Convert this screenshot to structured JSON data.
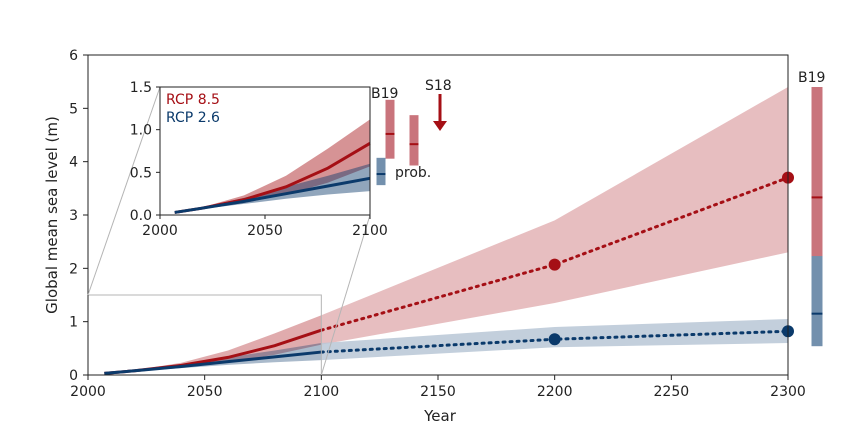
{
  "chart_data": {
    "type": "line",
    "title": "",
    "xlabel": "Year",
    "ylabel": "Global mean sea level (m)",
    "xlim": [
      2000,
      2300
    ],
    "ylim": [
      0,
      6
    ],
    "xticks": [
      2000,
      2050,
      2100,
      2150,
      2200,
      2250,
      2300
    ],
    "yticks": [
      0,
      1,
      2,
      3,
      4,
      5,
      6
    ],
    "grid": false,
    "series": [
      {
        "name": "RCP 8.5",
        "color": "#a50f15",
        "band_color": "#e3b3b5",
        "x": [
          2007,
          2020,
          2040,
          2060,
          2080,
          2100
        ],
        "y": [
          0.03,
          0.08,
          0.18,
          0.33,
          0.55,
          0.84
        ],
        "band_low": [
          0.03,
          0.07,
          0.14,
          0.24,
          0.38,
          0.57
        ],
        "band_high": [
          0.03,
          0.09,
          0.23,
          0.46,
          0.78,
          1.12
        ],
        "projection": {
          "x": [
            2100,
            2200,
            2300
          ],
          "y": [
            0.84,
            2.07,
            3.7
          ]
        },
        "projection_band": {
          "x": [
            2100,
            2200,
            2300
          ],
          "low": [
            0.57,
            1.35,
            2.3
          ],
          "high": [
            1.12,
            2.9,
            5.4
          ]
        },
        "markers": [
          {
            "x": 2200,
            "y": 2.07
          },
          {
            "x": 2300,
            "y": 3.7
          }
        ]
      },
      {
        "name": "RCP 2.6",
        "color": "#0b3a6b",
        "band_color": "#b8c7d6",
        "x": [
          2007,
          2020,
          2040,
          2060,
          2080,
          2100
        ],
        "y": [
          0.03,
          0.08,
          0.16,
          0.25,
          0.34,
          0.43
        ],
        "band_low": [
          0.03,
          0.07,
          0.13,
          0.19,
          0.24,
          0.28
        ],
        "band_high": [
          0.03,
          0.09,
          0.2,
          0.33,
          0.46,
          0.6
        ],
        "projection": {
          "x": [
            2100,
            2200,
            2300
          ],
          "y": [
            0.43,
            0.67,
            0.82
          ]
        },
        "projection_band": {
          "x": [
            2100,
            2200,
            2300
          ],
          "low": [
            0.28,
            0.52,
            0.6
          ],
          "high": [
            0.6,
            0.9,
            1.05
          ]
        },
        "markers": [
          {
            "x": 2200,
            "y": 0.67
          },
          {
            "x": 2300,
            "y": 0.82
          }
        ]
      }
    ],
    "side_bars": [
      {
        "label": "B19",
        "series": "RCP 8.5",
        "low": 1.99,
        "high": 5.4,
        "median": 3.33,
        "color": "#c9747c",
        "median_color": "#a50f15"
      },
      {
        "label": "",
        "series": "RCP 2.6",
        "low": 0.54,
        "high": 2.23,
        "median": 1.15,
        "color": "#7390ad",
        "median_color": "#0b3a6b"
      }
    ],
    "inset": {
      "xlim": [
        2000,
        2100
      ],
      "ylim": [
        0,
        1.5
      ],
      "xticks": [
        2000,
        2050,
        2100
      ],
      "yticks": [
        0.0,
        0.5,
        1.0,
        1.5
      ],
      "ytick_labels": [
        "0.0",
        "0.5",
        "1.0",
        "1.5"
      ],
      "legend": [
        {
          "label": "RCP 8.5",
          "color": "#a50f15"
        },
        {
          "label": "RCP 2.6",
          "color": "#0b3a6b"
        }
      ],
      "annotations": {
        "b19_label": "B19",
        "s18_label": "S18",
        "prob_label": "prob."
      },
      "side_bars": [
        {
          "label": "B19 RCP 8.5",
          "low": 0.66,
          "high": 1.35,
          "median": 0.95,
          "color": "#c9747c",
          "median_color": "#a50f15"
        },
        {
          "label": "S18 RCP 8.5",
          "low": 0.58,
          "high": 1.17,
          "median": 0.83,
          "color": "#c9747c",
          "median_color": "#a50f15"
        },
        {
          "label": "prob. RCP 2.6",
          "low": 0.35,
          "high": 0.67,
          "median": 0.48,
          "color": "#7390ad",
          "median_color": "#0b3a6b"
        }
      ]
    }
  }
}
